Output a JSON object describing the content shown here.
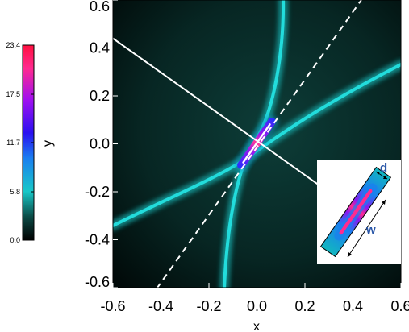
{
  "chart_data": {
    "type": "heatmap",
    "xlabel": "x",
    "ylabel": "y",
    "xlim": [
      -0.6,
      0.6
    ],
    "ylim": [
      -0.6,
      0.6
    ],
    "xticks": [
      "-0.6",
      "-0.4",
      "-0.2",
      "0.0",
      "0.2",
      "0.4",
      "0.6"
    ],
    "yticks": [
      "0.6",
      "0.4",
      "0.2",
      "0.0",
      "-0.2",
      "-0.4",
      "-0.6"
    ],
    "xtick_values": [
      -0.6,
      -0.4,
      -0.2,
      0.0,
      0.2,
      0.4,
      0.6
    ],
    "ytick_values": [
      0.6,
      0.4,
      0.2,
      0.0,
      -0.2,
      -0.4,
      -0.6
    ],
    "colorbar": {
      "ticks": [
        "23.4",
        "17.5",
        "11.7",
        "5.8",
        "0.0"
      ],
      "values": [
        23.4,
        17.5,
        11.7,
        5.8,
        0.0
      ],
      "range": [
        0.0,
        23.4
      ],
      "colors": [
        "#000000",
        "#0e5a52",
        "#18c8c8",
        "#1a6ff0",
        "#2a10f0",
        "#b010f0",
        "#ff2a7a",
        "#ff1040"
      ]
    },
    "lines": [
      {
        "style": "solid",
        "color": "#ffffff",
        "points": [
          [
            -0.6,
            0.44
          ],
          [
            0.27,
            -0.18
          ]
        ]
      },
      {
        "style": "dashed",
        "color": "#ffffff",
        "points": [
          [
            -0.5,
            -0.72
          ],
          [
            0.52,
            0.72
          ]
        ]
      }
    ],
    "features": {
      "hyperbola_color": "#1fd7d7",
      "central_streak_angle_deg": 55,
      "background_dark": "#02100e",
      "background_light": "#0c3a35"
    },
    "inset": {
      "labels": {
        "d": "d",
        "w": "w"
      }
    },
    "grid": false
  }
}
